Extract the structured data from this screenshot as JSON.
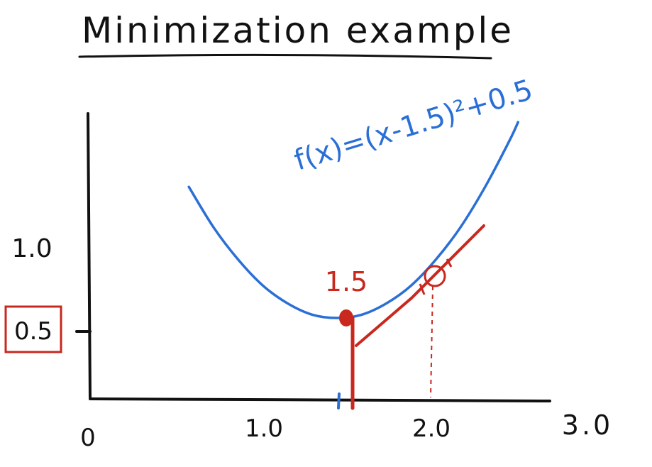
{
  "chart_data": {
    "type": "line",
    "title": "Minimization example",
    "equation": "f(x)=(x-1.5)²+0.5",
    "x_ticks": [
      "0",
      "1.0",
      "2.0",
      "3.0"
    ],
    "y_ticks": [
      "1.0",
      "0.5"
    ],
    "highlighted_y_tick": "0.5",
    "minimum_label": "1.5",
    "x_range": [
      0,
      3
    ],
    "y_range": [
      0,
      1.9
    ],
    "series": [
      {
        "x": [
          0.6,
          0.75,
          0.9,
          1.05,
          1.2,
          1.35,
          1.5,
          1.65,
          1.8,
          1.95,
          2.1,
          2.25,
          2.4,
          2.55,
          2.6
        ],
        "y": [
          1.31,
          1.06,
          0.86,
          0.7,
          0.59,
          0.52,
          0.5,
          0.52,
          0.59,
          0.7,
          0.86,
          1.06,
          1.31,
          1.6,
          1.71
        ]
      }
    ],
    "minimum_point": {
      "x": 1.5,
      "y": 0.5
    },
    "probe_point": {
      "x": 2.0,
      "y": 0.75
    },
    "grid": false,
    "colors": {
      "curve": "#2a6fd6",
      "annotation": "#c8281e",
      "axis": "#111111",
      "title": "#111111"
    }
  }
}
